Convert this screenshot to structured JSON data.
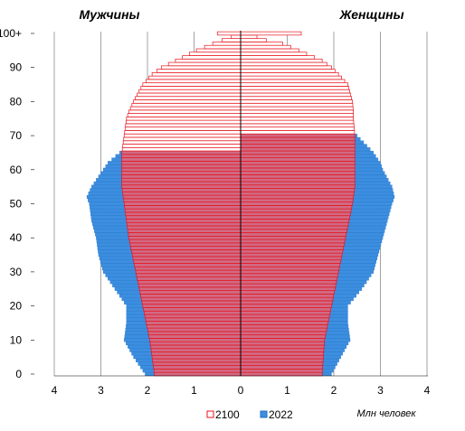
{
  "colors": {
    "y2100_stroke": "#e8141c",
    "y2100_fill": "#ffffff",
    "y2100_fill_overlap": "#d06a84",
    "y2022_fill": "#3c8ee0",
    "y2022_stroke": "#1f6fc0",
    "grid": "#666666",
    "axis": "#000000"
  },
  "chart_data": {
    "type": "population-pyramid",
    "title_left": "Мужчины",
    "title_right": "Женщины",
    "unit_label": "Млн человек",
    "x_ticks": [
      4,
      3,
      2,
      1,
      0,
      1,
      2,
      3,
      4
    ],
    "x_range": [
      -4,
      4
    ],
    "y_tick_labels": [
      "0",
      "10",
      "20",
      "30",
      "40",
      "50",
      "60",
      "70",
      "80",
      "90",
      "100+"
    ],
    "y_range": [
      0,
      100
    ],
    "grid": true,
    "legend": [
      "2100",
      "2022"
    ],
    "legend_position": "bottom",
    "series": [
      {
        "name": "2022",
        "male": {
          "ages": [
            0,
            5,
            10,
            15,
            20,
            25,
            30,
            35,
            40,
            45,
            50,
            52,
            55,
            60,
            62,
            65,
            70,
            75,
            80,
            85,
            90,
            95,
            100
          ],
          "values": [
            2.05,
            2.3,
            2.5,
            2.45,
            2.45,
            2.7,
            2.95,
            3.05,
            3.1,
            3.2,
            3.25,
            3.3,
            3.2,
            2.95,
            2.85,
            2.6,
            2.15,
            1.8,
            1.3,
            0.75,
            0.35,
            0.1,
            0.03
          ]
        },
        "female": {
          "ages": [
            0,
            5,
            10,
            15,
            20,
            25,
            30,
            35,
            40,
            45,
            50,
            52,
            55,
            60,
            62,
            65,
            70,
            75,
            80,
            85,
            90,
            95,
            100
          ],
          "values": [
            1.95,
            2.15,
            2.35,
            2.3,
            2.3,
            2.6,
            2.85,
            2.95,
            3.05,
            3.15,
            3.25,
            3.3,
            3.25,
            3.05,
            3.0,
            2.85,
            2.5,
            2.15,
            1.7,
            1.1,
            0.55,
            0.2,
            0.08
          ]
        }
      },
      {
        "name": "2100",
        "male": {
          "ages": [
            0,
            10,
            20,
            30,
            40,
            50,
            55,
            60,
            65,
            70,
            75,
            77,
            80,
            85,
            88,
            90,
            92,
            95,
            97,
            98,
            99,
            100
          ],
          "values": [
            1.85,
            1.95,
            2.1,
            2.25,
            2.4,
            2.5,
            2.55,
            2.55,
            2.55,
            2.5,
            2.45,
            2.4,
            2.3,
            2.1,
            1.9,
            1.7,
            1.4,
            0.95,
            0.6,
            0.4,
            0.2,
            0.5
          ]
        },
        "female": {
          "ages": [
            0,
            10,
            20,
            30,
            40,
            50,
            55,
            60,
            65,
            70,
            75,
            77,
            80,
            85,
            88,
            90,
            92,
            95,
            97,
            98,
            99,
            100
          ],
          "values": [
            1.75,
            1.8,
            1.95,
            2.1,
            2.25,
            2.4,
            2.45,
            2.45,
            2.45,
            2.45,
            2.42,
            2.42,
            2.4,
            2.3,
            2.1,
            1.95,
            1.75,
            1.25,
            0.9,
            0.55,
            0.35,
            1.3
          ]
        }
      }
    ]
  }
}
